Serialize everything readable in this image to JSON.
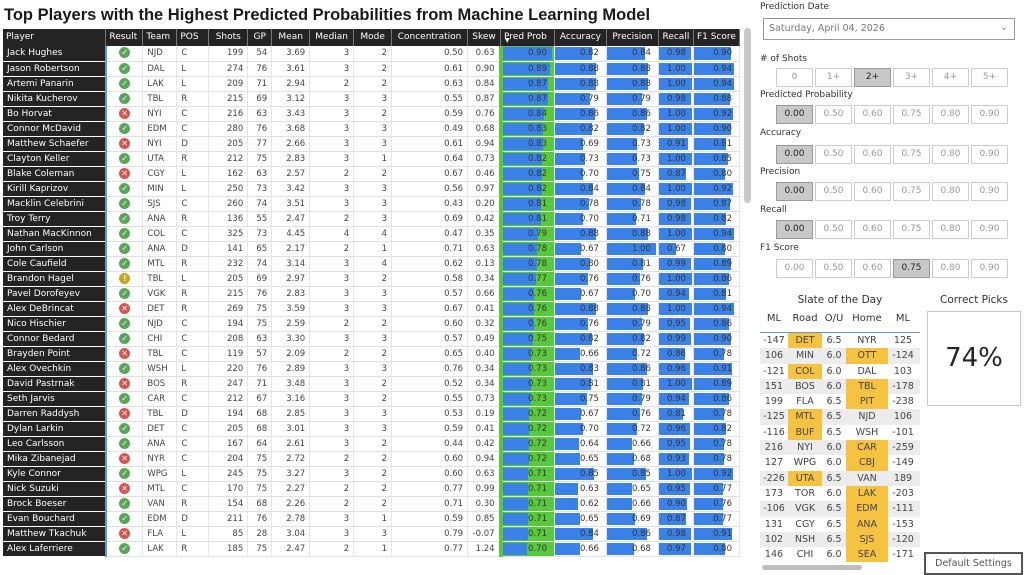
{
  "title": "Top Players with the Highest Predicted Probabilities from Machine Learning Model",
  "table": {
    "columns": [
      "Player",
      "Result",
      "Team",
      "POS",
      "Shots",
      "GP",
      "Mean",
      "Median",
      "Mode",
      "Concentration",
      "Skew",
      "Pred Prob",
      "Accuracy",
      "Precision",
      "Recall",
      "F1 Score"
    ],
    "sorted_column": "Pred Prob",
    "rows": [
      {
        "player": "Jack Hughes",
        "result": "correct",
        "team": "NJD",
        "pos": "C",
        "shots": "199",
        "gp": "54",
        "mean": "3.69",
        "median": "3",
        "mode": "2",
        "concentration": "0.50",
        "skew": "0.63",
        "pred_prob": "0.90",
        "accuracy": "0.82",
        "precision": "0.84",
        "recall": "0.98",
        "f1": "0.90"
      },
      {
        "player": "Jason Robertson",
        "result": "correct",
        "team": "DAL",
        "pos": "L",
        "shots": "274",
        "gp": "76",
        "mean": "3.61",
        "median": "3",
        "mode": "2",
        "concentration": "0.61",
        "skew": "0.90",
        "pred_prob": "0.89",
        "accuracy": "0.88",
        "precision": "0.88",
        "recall": "1.00",
        "f1": "0.94"
      },
      {
        "player": "Artemi Panarin",
        "result": "correct",
        "team": "LAK",
        "pos": "L",
        "shots": "209",
        "gp": "71",
        "mean": "2.94",
        "median": "2",
        "mode": "2",
        "concentration": "0.63",
        "skew": "0.84",
        "pred_prob": "0.87",
        "accuracy": "0.88",
        "precision": "0.88",
        "recall": "1.00",
        "f1": "0.94"
      },
      {
        "player": "Nikita Kucherov",
        "result": "correct",
        "team": "TBL",
        "pos": "R",
        "shots": "215",
        "gp": "69",
        "mean": "3.12",
        "median": "3",
        "mode": "3",
        "concentration": "0.55",
        "skew": "0.87",
        "pred_prob": "0.87",
        "accuracy": "0.79",
        "precision": "0.79",
        "recall": "0.98",
        "f1": "0.88"
      },
      {
        "player": "Bo Horvat",
        "result": "incorrect",
        "team": "NYI",
        "pos": "C",
        "shots": "216",
        "gp": "63",
        "mean": "3.43",
        "median": "3",
        "mode": "2",
        "concentration": "0.59",
        "skew": "0.76",
        "pred_prob": "0.84",
        "accuracy": "0.86",
        "precision": "0.86",
        "recall": "1.00",
        "f1": "0.92"
      },
      {
        "player": "Connor McDavid",
        "result": "correct",
        "team": "EDM",
        "pos": "C",
        "shots": "280",
        "gp": "76",
        "mean": "3.68",
        "median": "3",
        "mode": "3",
        "concentration": "0.49",
        "skew": "0.68",
        "pred_prob": "0.83",
        "accuracy": "0.82",
        "precision": "0.82",
        "recall": "1.00",
        "f1": "0.90"
      },
      {
        "player": "Matthew Schaefer",
        "result": "incorrect",
        "team": "NYI",
        "pos": "D",
        "shots": "205",
        "gp": "77",
        "mean": "2.66",
        "median": "3",
        "mode": "3",
        "concentration": "0.61",
        "skew": "0.94",
        "pred_prob": "0.83",
        "accuracy": "0.69",
        "precision": "0.73",
        "recall": "0.91",
        "f1": "0.81"
      },
      {
        "player": "Clayton Keller",
        "result": "correct",
        "team": "UTA",
        "pos": "R",
        "shots": "212",
        "gp": "75",
        "mean": "2.83",
        "median": "3",
        "mode": "1",
        "concentration": "0.64",
        "skew": "0.73",
        "pred_prob": "0.82",
        "accuracy": "0.73",
        "precision": "0.73",
        "recall": "1.00",
        "f1": "0.85"
      },
      {
        "player": "Blake Coleman",
        "result": "incorrect",
        "team": "CGY",
        "pos": "L",
        "shots": "162",
        "gp": "63",
        "mean": "2.57",
        "median": "2",
        "mode": "2",
        "concentration": "0.67",
        "skew": "0.46",
        "pred_prob": "0.82",
        "accuracy": "0.70",
        "precision": "0.75",
        "recall": "0.87",
        "f1": "0.80"
      },
      {
        "player": "Kirill Kaprizov",
        "result": "correct",
        "team": "MIN",
        "pos": "L",
        "shots": "250",
        "gp": "73",
        "mean": "3.42",
        "median": "3",
        "mode": "3",
        "concentration": "0.56",
        "skew": "0.97",
        "pred_prob": "0.82",
        "accuracy": "0.84",
        "precision": "0.84",
        "recall": "1.00",
        "f1": "0.92"
      },
      {
        "player": "Macklin Celebrini",
        "result": "correct",
        "team": "SJS",
        "pos": "C",
        "shots": "260",
        "gp": "74",
        "mean": "3.51",
        "median": "3",
        "mode": "3",
        "concentration": "0.43",
        "skew": "0.20",
        "pred_prob": "0.81",
        "accuracy": "0.78",
        "precision": "0.78",
        "recall": "0.98",
        "f1": "0.87"
      },
      {
        "player": "Troy Terry",
        "result": "correct",
        "team": "ANA",
        "pos": "R",
        "shots": "136",
        "gp": "55",
        "mean": "2.47",
        "median": "2",
        "mode": "3",
        "concentration": "0.69",
        "skew": "0.42",
        "pred_prob": "0.81",
        "accuracy": "0.70",
        "precision": "0.71",
        "recall": "0.98",
        "f1": "0.82"
      },
      {
        "player": "Nathan MacKinnon",
        "result": "correct",
        "team": "COL",
        "pos": "C",
        "shots": "325",
        "gp": "73",
        "mean": "4.45",
        "median": "4",
        "mode": "4",
        "concentration": "0.47",
        "skew": "0.35",
        "pred_prob": "0.79",
        "accuracy": "0.88",
        "precision": "0.88",
        "recall": "1.00",
        "f1": "0.94"
      },
      {
        "player": "John Carlson",
        "result": "correct",
        "team": "ANA",
        "pos": "D",
        "shots": "141",
        "gp": "65",
        "mean": "2.17",
        "median": "2",
        "mode": "1",
        "concentration": "0.71",
        "skew": "0.63",
        "pred_prob": "0.78",
        "accuracy": "0.67",
        "precision": "1.00",
        "recall": "0.67",
        "f1": "0.80"
      },
      {
        "player": "Cole Caufield",
        "result": "correct",
        "team": "MTL",
        "pos": "R",
        "shots": "232",
        "gp": "74",
        "mean": "3.14",
        "median": "3",
        "mode": "4",
        "concentration": "0.62",
        "skew": "0.13",
        "pred_prob": "0.78",
        "accuracy": "0.80",
        "precision": "0.81",
        "recall": "0.99",
        "f1": "0.89"
      },
      {
        "player": "Brandon Hagel",
        "result": "pending",
        "team": "TBL",
        "pos": "L",
        "shots": "205",
        "gp": "69",
        "mean": "2.97",
        "median": "3",
        "mode": "2",
        "concentration": "0.58",
        "skew": "0.34",
        "pred_prob": "0.77",
        "accuracy": "0.76",
        "precision": "0.76",
        "recall": "1.00",
        "f1": "0.86"
      },
      {
        "player": "Pavel Dorofeyev",
        "result": "correct",
        "team": "VGK",
        "pos": "R",
        "shots": "215",
        "gp": "76",
        "mean": "2.83",
        "median": "3",
        "mode": "3",
        "concentration": "0.57",
        "skew": "0.66",
        "pred_prob": "0.76",
        "accuracy": "0.67",
        "precision": "0.70",
        "recall": "0.94",
        "f1": "0.81"
      },
      {
        "player": "Alex DeBrincat",
        "result": "incorrect",
        "team": "DET",
        "pos": "R",
        "shots": "269",
        "gp": "75",
        "mean": "3.59",
        "median": "3",
        "mode": "3",
        "concentration": "0.67",
        "skew": "0.41",
        "pred_prob": "0.76",
        "accuracy": "0.88",
        "precision": "0.88",
        "recall": "1.00",
        "f1": "0.94"
      },
      {
        "player": "Nico Hischier",
        "result": "correct",
        "team": "NJD",
        "pos": "C",
        "shots": "194",
        "gp": "75",
        "mean": "2.59",
        "median": "2",
        "mode": "2",
        "concentration": "0.60",
        "skew": "0.32",
        "pred_prob": "0.76",
        "accuracy": "0.76",
        "precision": "0.79",
        "recall": "0.95",
        "f1": "0.86"
      },
      {
        "player": "Connor Bedard",
        "result": "correct",
        "team": "CHI",
        "pos": "C",
        "shots": "208",
        "gp": "63",
        "mean": "3.30",
        "median": "3",
        "mode": "3",
        "concentration": "0.57",
        "skew": "0.49",
        "pred_prob": "0.75",
        "accuracy": "0.82",
        "precision": "0.82",
        "recall": "0.99",
        "f1": "0.90"
      },
      {
        "player": "Brayden Point",
        "result": "incorrect",
        "team": "TBL",
        "pos": "C",
        "shots": "119",
        "gp": "57",
        "mean": "2.09",
        "median": "2",
        "mode": "2",
        "concentration": "0.65",
        "skew": "0.40",
        "pred_prob": "0.73",
        "accuracy": "0.66",
        "precision": "0.72",
        "recall": "0.86",
        "f1": "0.78"
      },
      {
        "player": "Alex Ovechkin",
        "result": "correct",
        "team": "WSH",
        "pos": "L",
        "shots": "220",
        "gp": "76",
        "mean": "2.89",
        "median": "3",
        "mode": "3",
        "concentration": "0.76",
        "skew": "0.34",
        "pred_prob": "0.73",
        "accuracy": "0.83",
        "precision": "0.86",
        "recall": "0.96",
        "f1": "0.91"
      },
      {
        "player": "David Pastrnak",
        "result": "incorrect",
        "team": "BOS",
        "pos": "R",
        "shots": "247",
        "gp": "71",
        "mean": "3.48",
        "median": "3",
        "mode": "2",
        "concentration": "0.52",
        "skew": "0.34",
        "pred_prob": "0.73",
        "accuracy": "0.81",
        "precision": "0.81",
        "recall": "1.00",
        "f1": "0.89"
      },
      {
        "player": "Seth Jarvis",
        "result": "correct",
        "team": "CAR",
        "pos": "C",
        "shots": "212",
        "gp": "67",
        "mean": "3.16",
        "median": "3",
        "mode": "2",
        "concentration": "0.55",
        "skew": "0.73",
        "pred_prob": "0.73",
        "accuracy": "0.75",
        "precision": "0.79",
        "recall": "0.94",
        "f1": "0.86"
      },
      {
        "player": "Darren Raddysh",
        "result": "incorrect",
        "team": "TBL",
        "pos": "D",
        "shots": "194",
        "gp": "68",
        "mean": "2.85",
        "median": "3",
        "mode": "3",
        "concentration": "0.53",
        "skew": "0.19",
        "pred_prob": "0.72",
        "accuracy": "0.67",
        "precision": "0.76",
        "recall": "0.81",
        "f1": "0.78"
      },
      {
        "player": "Dylan Larkin",
        "result": "correct",
        "team": "DET",
        "pos": "C",
        "shots": "205",
        "gp": "68",
        "mean": "3.01",
        "median": "3",
        "mode": "3",
        "concentration": "0.59",
        "skew": "0.41",
        "pred_prob": "0.72",
        "accuracy": "0.70",
        "precision": "0.72",
        "recall": "0.96",
        "f1": "0.82"
      },
      {
        "player": "Leo Carlsson",
        "result": "correct",
        "team": "ANA",
        "pos": "C",
        "shots": "167",
        "gp": "64",
        "mean": "2.61",
        "median": "3",
        "mode": "2",
        "concentration": "0.44",
        "skew": "0.42",
        "pred_prob": "0.72",
        "accuracy": "0.64",
        "precision": "0.66",
        "recall": "0.95",
        "f1": "0.78"
      },
      {
        "player": "Mika Zibanejad",
        "result": "incorrect",
        "team": "NYR",
        "pos": "C",
        "shots": "204",
        "gp": "75",
        "mean": "2.72",
        "median": "2",
        "mode": "2",
        "concentration": "0.60",
        "skew": "0.94",
        "pred_prob": "0.72",
        "accuracy": "0.65",
        "precision": "0.68",
        "recall": "0.93",
        "f1": "0.78"
      },
      {
        "player": "Kyle Connor",
        "result": "correct",
        "team": "WPG",
        "pos": "L",
        "shots": "245",
        "gp": "75",
        "mean": "3.27",
        "median": "3",
        "mode": "2",
        "concentration": "0.60",
        "skew": "0.63",
        "pred_prob": "0.71",
        "accuracy": "0.85",
        "precision": "0.85",
        "recall": "1.00",
        "f1": "0.92"
      },
      {
        "player": "Nick Suzuki",
        "result": "incorrect",
        "team": "MTL",
        "pos": "C",
        "shots": "170",
        "gp": "75",
        "mean": "2.27",
        "median": "2",
        "mode": "2",
        "concentration": "0.77",
        "skew": "0.99",
        "pred_prob": "0.71",
        "accuracy": "0.63",
        "precision": "0.65",
        "recall": "0.95",
        "f1": "0.77"
      },
      {
        "player": "Brock Boeser",
        "result": "correct",
        "team": "VAN",
        "pos": "R",
        "shots": "154",
        "gp": "68",
        "mean": "2.26",
        "median": "2",
        "mode": "2",
        "concentration": "0.71",
        "skew": "0.30",
        "pred_prob": "0.71",
        "accuracy": "0.62",
        "precision": "0.66",
        "recall": "0.90",
        "f1": "0.76"
      },
      {
        "player": "Evan Bouchard",
        "result": "correct",
        "team": "EDM",
        "pos": "D",
        "shots": "211",
        "gp": "76",
        "mean": "2.78",
        "median": "3",
        "mode": "1",
        "concentration": "0.59",
        "skew": "0.85",
        "pred_prob": "0.71",
        "accuracy": "0.65",
        "precision": "0.69",
        "recall": "0.87",
        "f1": "0.77"
      },
      {
        "player": "Matthew Tkachuk",
        "result": "incorrect",
        "team": "FLA",
        "pos": "L",
        "shots": "85",
        "gp": "28",
        "mean": "3.04",
        "median": "3",
        "mode": "3",
        "concentration": "0.79",
        "skew": "-0.07",
        "pred_prob": "0.71",
        "accuracy": "0.84",
        "precision": "0.86",
        "recall": "0.98",
        "f1": "0.91"
      },
      {
        "player": "Alex Laferriere",
        "result": "correct",
        "team": "LAK",
        "pos": "R",
        "shots": "185",
        "gp": "75",
        "mean": "2.47",
        "median": "2",
        "mode": "1",
        "concentration": "0.77",
        "skew": "1.24",
        "pred_prob": "0.70",
        "accuracy": "0.66",
        "precision": "0.68",
        "recall": "0.97",
        "f1": "0.80"
      }
    ]
  },
  "filters": {
    "prediction_date": {
      "label": "Prediction Date",
      "value": "Saturday, April 04, 2026"
    },
    "shots": {
      "label": "# of Shots",
      "options": [
        "0",
        "1+",
        "2+",
        "3+",
        "4+",
        "5+"
      ],
      "selected": "2+"
    },
    "predicted_probability": {
      "label": "Predicted Probability",
      "options": [
        "0.00",
        "0.50",
        "0.60",
        "0.75",
        "0.80",
        "0.90"
      ],
      "selected": "0.00"
    },
    "accuracy": {
      "label": "Accuracy",
      "options": [
        "0.00",
        "0.50",
        "0.60",
        "0.75",
        "0.80",
        "0.90"
      ],
      "selected": "0.00"
    },
    "precision": {
      "label": "Precision",
      "options": [
        "0.00",
        "0.50",
        "0.60",
        "0.75",
        "0.80",
        "0.90"
      ],
      "selected": "0.00"
    },
    "recall": {
      "label": "Recall",
      "options": [
        "0.00",
        "0.50",
        "0.60",
        "0.75",
        "0.80",
        "0.90"
      ],
      "selected": "0.00"
    },
    "f1_score": {
      "label": "F1 Score",
      "options": [
        "0.00",
        "0.50",
        "0.60",
        "0.75",
        "0.80",
        "0.90"
      ],
      "selected": "0.75"
    }
  },
  "slate": {
    "title": "Slate of the Day",
    "headers": [
      "ML",
      "Road",
      "O/U",
      "Home",
      "ML"
    ],
    "games": [
      {
        "road_ml": "-147",
        "road": "DET",
        "ou": "6.5",
        "home": "NYR",
        "home_ml": "125",
        "pick": "road"
      },
      {
        "road_ml": "106",
        "road": "MIN",
        "ou": "6.0",
        "home": "OTT",
        "home_ml": "-124",
        "pick": "home"
      },
      {
        "road_ml": "-121",
        "road": "COL",
        "ou": "6.0",
        "home": "DAL",
        "home_ml": "103",
        "pick": "road"
      },
      {
        "road_ml": "151",
        "road": "BOS",
        "ou": "6.0",
        "home": "TBL",
        "home_ml": "-178",
        "pick": "home"
      },
      {
        "road_ml": "199",
        "road": "FLA",
        "ou": "6.5",
        "home": "PIT",
        "home_ml": "-238",
        "pick": "home"
      },
      {
        "road_ml": "-125",
        "road": "MTL",
        "ou": "6.5",
        "home": "NJD",
        "home_ml": "106",
        "pick": "road"
      },
      {
        "road_ml": "-116",
        "road": "BUF",
        "ou": "6.5",
        "home": "WSH",
        "home_ml": "-101",
        "pick": "road"
      },
      {
        "road_ml": "216",
        "road": "NYI",
        "ou": "6.0",
        "home": "CAR",
        "home_ml": "-259",
        "pick": "home"
      },
      {
        "road_ml": "127",
        "road": "WPG",
        "ou": "6.0",
        "home": "CBJ",
        "home_ml": "-149",
        "pick": "home"
      },
      {
        "road_ml": "-226",
        "road": "UTA",
        "ou": "6.5",
        "home": "VAN",
        "home_ml": "189",
        "pick": "road"
      },
      {
        "road_ml": "173",
        "road": "TOR",
        "ou": "6.0",
        "home": "LAK",
        "home_ml": "-203",
        "pick": "home"
      },
      {
        "road_ml": "-106",
        "road": "VGK",
        "ou": "6.5",
        "home": "EDM",
        "home_ml": "-111",
        "pick": "home"
      },
      {
        "road_ml": "131",
        "road": "CGY",
        "ou": "6.5",
        "home": "ANA",
        "home_ml": "-153",
        "pick": "home"
      },
      {
        "road_ml": "102",
        "road": "NSH",
        "ou": "6.5",
        "home": "SJS",
        "home_ml": "-120",
        "pick": "home"
      },
      {
        "road_ml": "146",
        "road": "CHI",
        "ou": "6.0",
        "home": "SEA",
        "home_ml": "-171",
        "pick": "home"
      }
    ]
  },
  "correct_picks": {
    "title": "Correct Picks",
    "value": "74%"
  },
  "default_settings_label": "Default Settings",
  "colors": {
    "header_bg": "#252423",
    "bar_blue": "#3b82e8",
    "bar_green": "#5ac83c",
    "pick_highlight": "#f5c242",
    "correct": "#5aa55a",
    "incorrect": "#d9534f",
    "pending": "#d4a017"
  }
}
